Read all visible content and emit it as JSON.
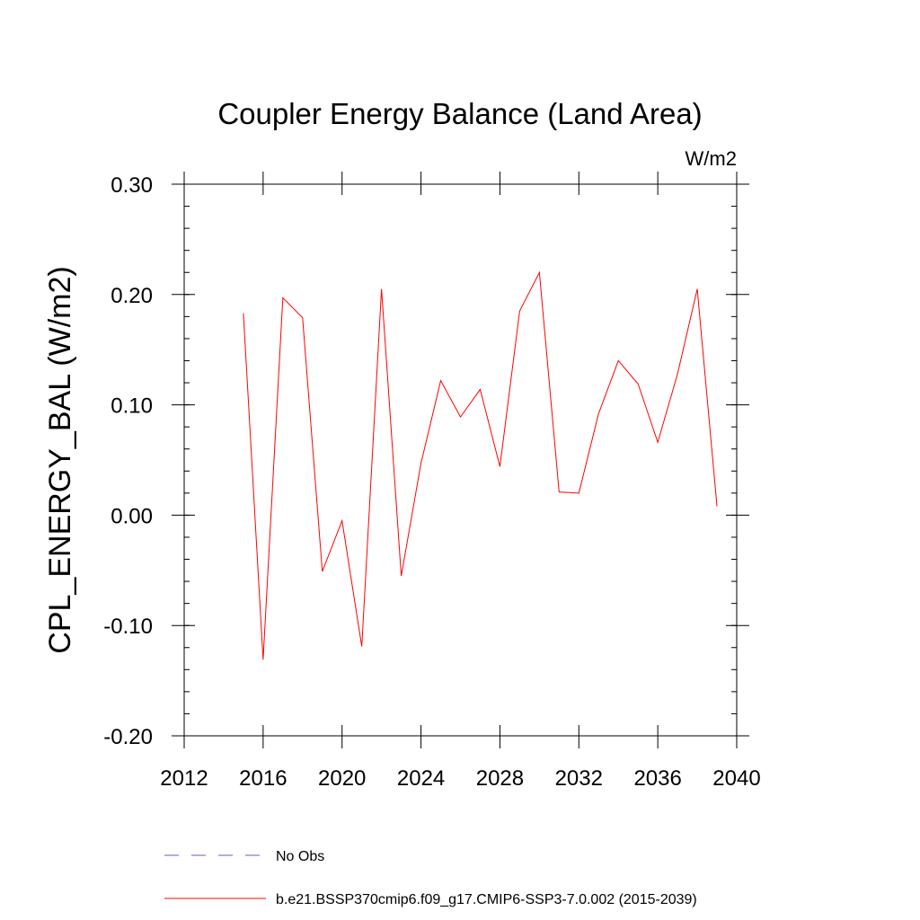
{
  "chart_data": {
    "type": "line",
    "title": "Coupler Energy Balance (Land Area)",
    "units_label": "W/m2",
    "xlabel": "",
    "ylabel": "CPL_ENERGY_BAL  (W/m2)",
    "xlim": [
      2012,
      2040
    ],
    "ylim": [
      -0.2,
      0.3
    ],
    "x_ticks": [
      2012,
      2016,
      2020,
      2024,
      2028,
      2032,
      2036,
      2040
    ],
    "x_tick_labels": [
      "2012",
      "2016",
      "2020",
      "2024",
      "2028",
      "2032",
      "2036",
      "2040"
    ],
    "y_ticks": [
      -0.2,
      -0.1,
      0.0,
      0.1,
      0.2,
      0.3
    ],
    "y_tick_labels": [
      "-0.20",
      "-0.10",
      "0.00",
      "0.10",
      "0.20",
      "0.30"
    ],
    "grid": false,
    "legend_position": "bottom",
    "series": [
      {
        "name": "No Obs",
        "color": "#6a5acd",
        "dashed": true,
        "x": [],
        "y": []
      },
      {
        "name": "b.e21.BSSP370cmip6.f09_g17.CMIP6-SSP3-7.0.002 (2015-2039)",
        "color": "#ff0000",
        "dashed": false,
        "x": [
          2015,
          2016,
          2017,
          2018,
          2019,
          2020,
          2021,
          2022,
          2023,
          2024,
          2025,
          2026,
          2027,
          2028,
          2029,
          2030,
          2031,
          2032,
          2033,
          2034,
          2035,
          2036,
          2037,
          2038,
          2039
        ],
        "y": [
          0.183,
          -0.131,
          0.197,
          0.179,
          -0.051,
          -0.005,
          -0.119,
          0.205,
          -0.055,
          0.047,
          0.122,
          0.089,
          0.114,
          0.044,
          0.185,
          0.22,
          0.021,
          0.02,
          0.092,
          0.14,
          0.119,
          0.066,
          0.128,
          0.205,
          0.008
        ]
      }
    ]
  }
}
